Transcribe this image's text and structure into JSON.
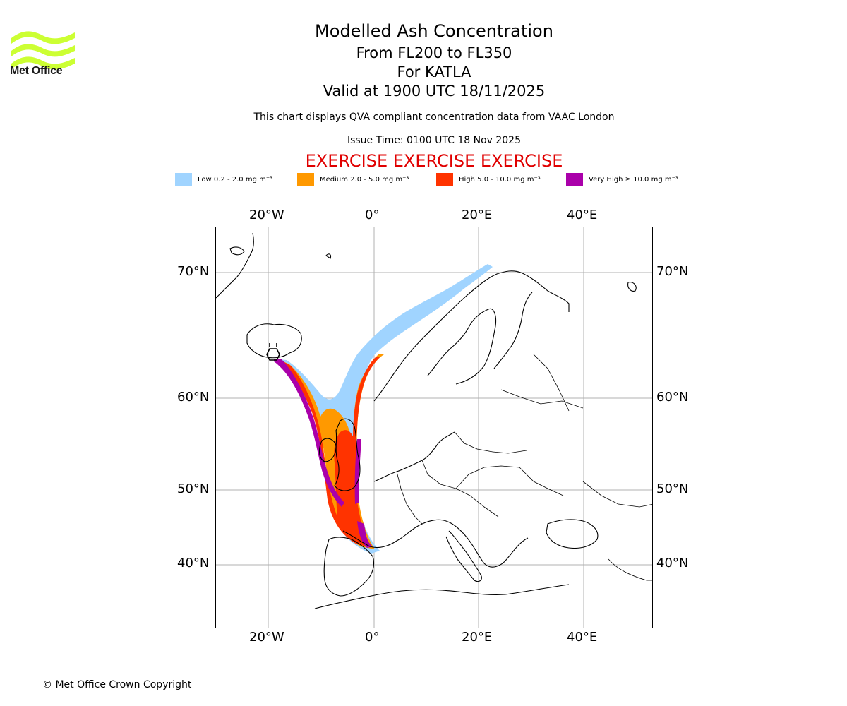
{
  "branding": {
    "logo_text": "Met Office",
    "logo_color": "#ccff33"
  },
  "header": {
    "title": "Modelled Ash Concentration",
    "subtitle_levels": "From FL200 to FL350",
    "subtitle_volcano": "For KATLA",
    "subtitle_valid": "Valid at 1900 UTC 18/11/2025",
    "compliance_note": "This chart displays QVA compliant concentration data from VAAC London",
    "issue_time": "Issue Time: 0100 UTC 18 Nov 2025",
    "exercise_banner": "EXERCISE EXERCISE EXERCISE"
  },
  "legend": [
    {
      "label": "Low 0.2 - 2.0 mg m⁻³",
      "color": "#a0d4ff"
    },
    {
      "label": "Medium 2.0 - 5.0 mg m⁻³",
      "color": "#ff9900"
    },
    {
      "label": "High 5.0 - 10.0 mg m⁻³",
      "color": "#ff3300"
    },
    {
      "label": "Very High ≥ 10.0 mg m⁻³",
      "color": "#aa00aa"
    }
  ],
  "map": {
    "lon_ticks": [
      "20°W",
      "0°",
      "20°E",
      "40°E"
    ],
    "lat_ticks": [
      "70°N",
      "60°N",
      "50°N",
      "40°N"
    ],
    "gridlines": true,
    "volcano_marker": "hexagon-symbol"
  },
  "footer": {
    "copyright": "© Met Office Crown Copyright"
  }
}
